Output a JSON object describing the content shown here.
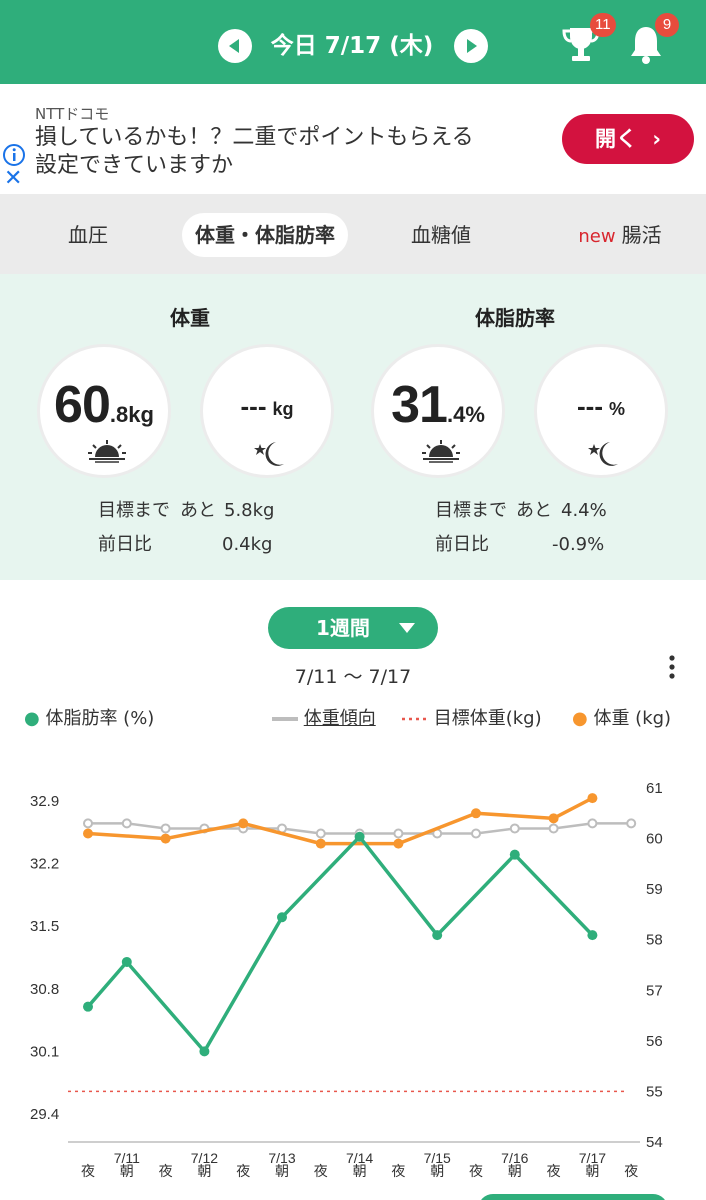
{
  "header": {
    "date_label": "今日 7/17 (木)",
    "trophy_badge": "11",
    "bell_badge": "9",
    "prev_icon": "chevron-left-icon",
    "next_icon": "chevron-right-icon",
    "accent": "#2fae7b"
  },
  "ad": {
    "brand": "NTTドコモ",
    "line1": "損しているかも！？二重でポイントもらえる",
    "line2": "設定できていますか",
    "button_label": "開く",
    "button_color": "#d3123f"
  },
  "tabs": [
    {
      "label": "血圧",
      "active": false
    },
    {
      "label": "体重・体脂肪率",
      "active": true
    },
    {
      "label": "血糖値",
      "active": false
    },
    {
      "label": "腸活",
      "new_tag": "new",
      "active": false
    }
  ],
  "summary": {
    "weight": {
      "title": "体重",
      "morning_int": "60",
      "morning_dec": ".8",
      "morning_unit": "kg",
      "night_value": "---",
      "night_unit": "kg",
      "goal_label": "目標まで",
      "goal_rest": "あと",
      "goal_value": "5.8kg",
      "diff_label": "前日比",
      "diff_value": "0.4kg"
    },
    "fat": {
      "title": "体脂肪率",
      "morning_int": "31",
      "morning_dec": ".4",
      "morning_unit": "%",
      "night_value": "---",
      "night_unit": "%",
      "goal_label": "目標まで",
      "goal_rest": "あと",
      "goal_value": "4.4%",
      "diff_label": "前日比",
      "diff_value": "-0.9%"
    }
  },
  "period": {
    "label": "1週間",
    "range": "7/11 〜 7/17"
  },
  "legend": {
    "fat": "体脂肪率 (%)",
    "trend": "体重傾向",
    "goal": "目標体重(kg)",
    "weight": "体重 (kg)"
  },
  "chart_data": {
    "type": "line",
    "x_slots": [
      "夜",
      "朝",
      "夜",
      "朝",
      "夜",
      "朝",
      "夜",
      "朝",
      "夜",
      "朝",
      "夜",
      "朝",
      "夜",
      "朝",
      "夜"
    ],
    "date_labels": [
      {
        "slot": 1,
        "label": "7/11"
      },
      {
        "slot": 3,
        "label": "7/12"
      },
      {
        "slot": 5,
        "label": "7/13"
      },
      {
        "slot": 7,
        "label": "7/14"
      },
      {
        "slot": 9,
        "label": "7/15"
      },
      {
        "slot": 11,
        "label": "7/16"
      },
      {
        "slot": 13,
        "label": "7/17"
      }
    ],
    "left_axis": {
      "ticks": [
        29.4,
        30.1,
        30.8,
        31.5,
        32.2,
        32.9
      ],
      "min": 29.4,
      "max": 32.9
    },
    "right_axis": {
      "ticks": [
        54,
        55,
        56,
        57,
        58,
        59,
        60,
        61
      ],
      "min": 54,
      "max": 61
    },
    "series": [
      {
        "name": "体脂肪率 (%)",
        "axis": "left",
        "color": "#2fae7b",
        "points": [
          [
            0,
            30.6
          ],
          [
            1,
            31.1
          ],
          [
            3,
            30.1
          ],
          [
            5,
            31.6
          ],
          [
            7,
            32.5
          ],
          [
            9,
            31.4
          ],
          [
            11,
            32.3
          ],
          [
            13,
            31.4
          ]
        ]
      },
      {
        "name": "体重傾向",
        "axis": "right",
        "color": "#bdbdbd",
        "points": [
          [
            0,
            60.3
          ],
          [
            1,
            60.3
          ],
          [
            2,
            60.2
          ],
          [
            3,
            60.2
          ],
          [
            4,
            60.2
          ],
          [
            5,
            60.2
          ],
          [
            6,
            60.1
          ],
          [
            7,
            60.1
          ],
          [
            8,
            60.1
          ],
          [
            9,
            60.1
          ],
          [
            10,
            60.1
          ],
          [
            11,
            60.2
          ],
          [
            12,
            60.2
          ],
          [
            13,
            60.3
          ],
          [
            14,
            60.3
          ]
        ]
      },
      {
        "name": "体重 (kg)",
        "axis": "right",
        "color": "#f7962e",
        "points": [
          [
            0,
            60.1
          ],
          [
            2,
            60.0
          ],
          [
            4,
            60.3
          ],
          [
            6,
            59.9
          ],
          [
            8,
            59.9
          ],
          [
            10,
            60.5
          ],
          [
            12,
            60.4
          ],
          [
            13,
            60.8
          ]
        ]
      }
    ],
    "goal_line": {
      "axis": "right",
      "value": 55,
      "color": "#e8574d"
    }
  }
}
